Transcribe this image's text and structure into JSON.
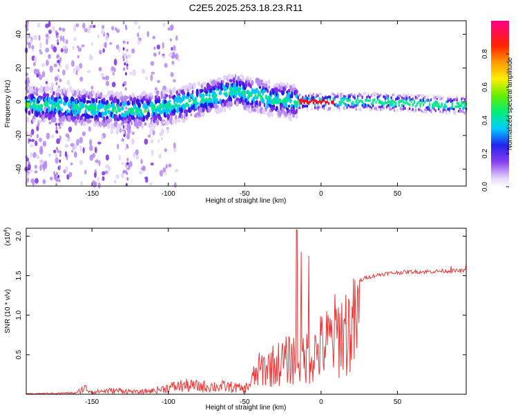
{
  "figure": {
    "title": "C2E5.2025.253.18.23.R11"
  },
  "chart_data": [
    {
      "type": "heatmap",
      "xlabel": "Height of straight line (km)",
      "ylabel": "Frequency (Hz)",
      "xlim": [
        -193,
        95
      ],
      "ylim": [
        -50,
        48
      ],
      "xticks": [
        -150,
        -100,
        -50,
        0,
        50
      ],
      "yticks": [
        -40,
        -20,
        0,
        20,
        40
      ],
      "ridge": {
        "x": [
          -193,
          -180,
          -165,
          -150,
          -135,
          -125,
          -115,
          -100,
          -90,
          -80,
          -70,
          -60,
          -55,
          -50,
          -45,
          -40,
          -35,
          -30,
          -25,
          -20,
          -15,
          0,
          20,
          40,
          60,
          80,
          95
        ],
        "y": [
          -2,
          -2,
          -3,
          -4,
          -5,
          -5,
          -5,
          -3,
          -1,
          1,
          3,
          6,
          7,
          5,
          3,
          4,
          2,
          1,
          1,
          0,
          0,
          0,
          0,
          0,
          -1,
          -2,
          -2
        ]
      },
      "peak_region_x": [
        -15,
        10
      ]
    },
    {
      "type": "colorbar",
      "label": "Normalized spectral amplitude",
      "range": [
        0,
        1
      ],
      "ticks": [
        "0.0",
        "0.2",
        "0.4",
        "0.6",
        "0.8"
      ]
    },
    {
      "type": "line",
      "xlabel": "Height of straight line (km)",
      "ylabel": "SNR (10 * v/v)",
      "yscale_label": "(x10",
      "yscale_exp": "4",
      "yscale_close": ")",
      "xlim": [
        -193,
        95
      ],
      "ylim": [
        0,
        2.1
      ],
      "xticks": [
        -150,
        -100,
        -50,
        0,
        50
      ],
      "yticks": [
        0.5,
        1.0,
        1.5,
        2.0
      ],
      "ytick_labels": [
        "0.5",
        "1.0",
        "1.5",
        "2.0"
      ],
      "series": [
        {
          "name": "SNR",
          "color": "#ee3333",
          "envelope_x": [
            -193,
            -160,
            -155,
            -150,
            -140,
            -130,
            -120,
            -110,
            -100,
            -90,
            -80,
            -70,
            -60,
            -50,
            -45,
            -40,
            -35,
            -30,
            -25,
            -20,
            -15,
            -10,
            -5,
            0,
            5,
            10,
            15,
            20,
            25,
            30,
            40,
            50,
            60,
            70,
            80,
            95
          ],
          "envelope_y": [
            0.01,
            0.03,
            0.15,
            0.05,
            0.08,
            0.08,
            0.05,
            0.08,
            0.15,
            0.2,
            0.18,
            0.18,
            0.17,
            0.12,
            0.3,
            0.5,
            0.55,
            0.6,
            0.65,
            0.7,
            0.75,
            0.75,
            0.8,
            0.95,
            1.05,
            1.2,
            1.28,
            1.35,
            1.43,
            1.48,
            1.52,
            1.54,
            1.55,
            1.55,
            1.56,
            1.56
          ],
          "spikes_x": [
            -16,
            -13,
            -8,
            85,
            95
          ],
          "spikes_y": [
            2.08,
            1.8,
            1.75,
            1.62,
            1.65
          ]
        }
      ]
    }
  ]
}
